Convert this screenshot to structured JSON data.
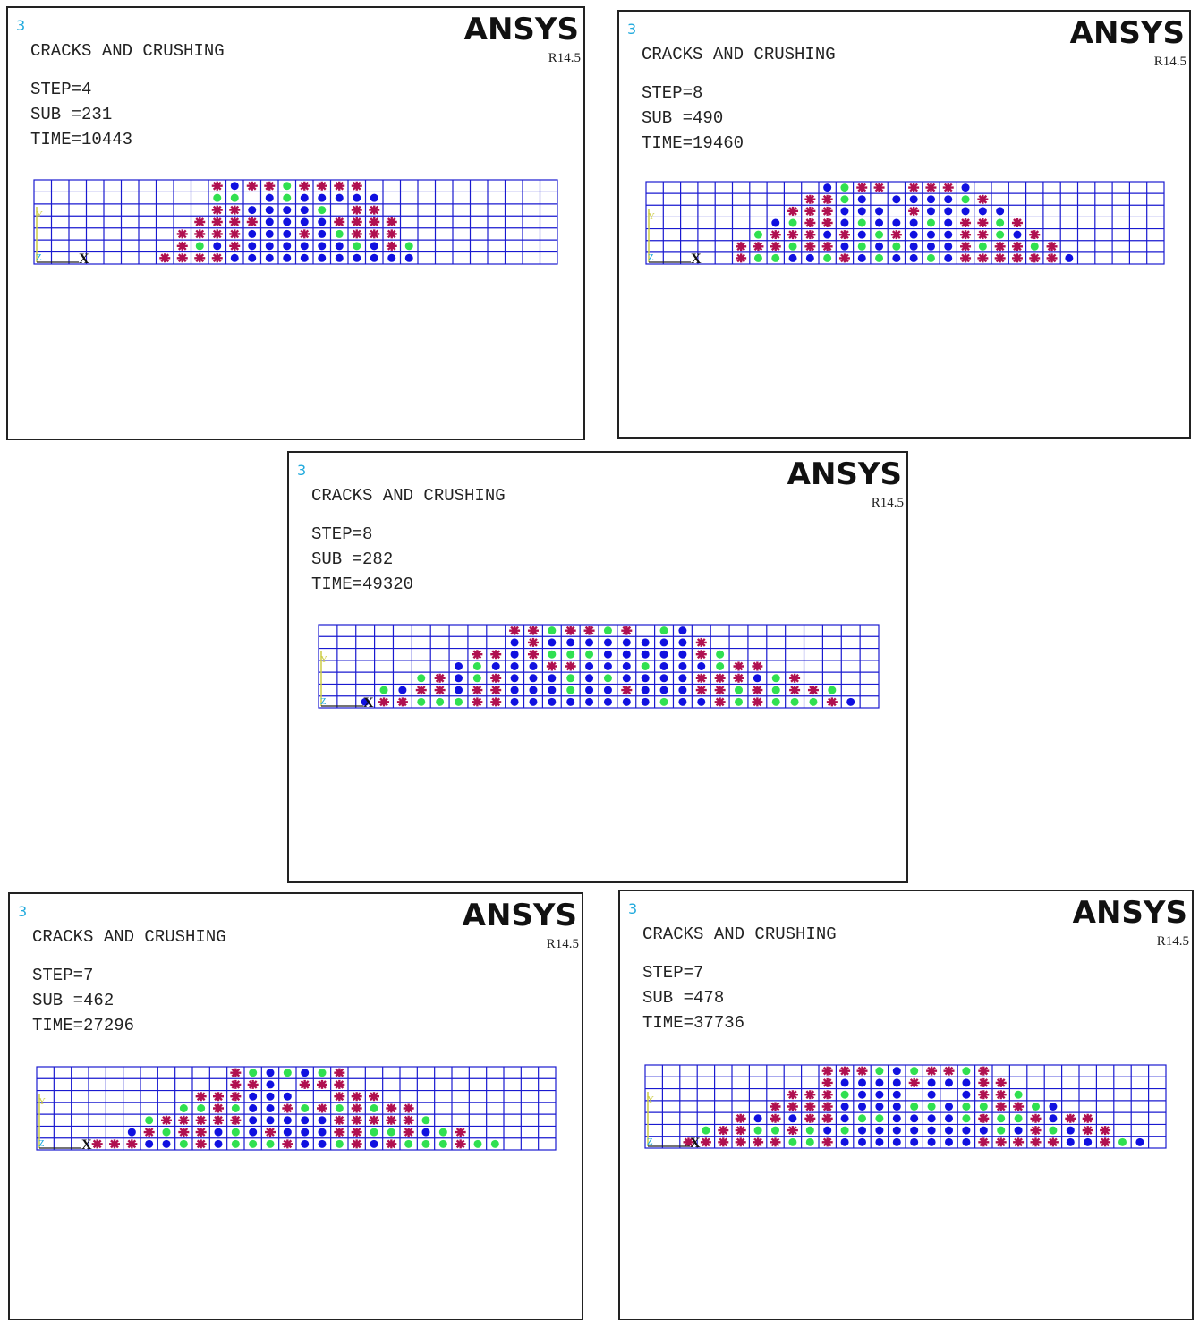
{
  "panels": [
    {
      "window": "3",
      "title": "CRACKS AND CRUSHING",
      "step": "STEP=4",
      "sub": "SUB =231",
      "time": "TIME=10443",
      "logo": "ANSYS",
      "version": "R14.5",
      "axes": {
        "y": "Y",
        "z": "Z",
        "x": "X"
      }
    },
    {
      "window": "3",
      "title": "CRACKS AND CRUSHING",
      "step": "STEP=8",
      "sub": "SUB =490",
      "time": "TIME=19460",
      "logo": "ANSYS",
      "version": "R14.5",
      "axes": {
        "y": "Y",
        "z": "Z",
        "x": "X"
      }
    },
    {
      "window": "3",
      "title": "CRACKS AND CRUSHING",
      "step": "STEP=8",
      "sub": "SUB =282",
      "time": "TIME=49320",
      "logo": "ANSYS",
      "version": "R14.5",
      "axes": {
        "y": "Y",
        "z": "Z",
        "x": "X"
      }
    },
    {
      "window": "3",
      "title": "CRACKS AND CRUSHING",
      "step": "STEP=7",
      "sub": "SUB =462",
      "time": "TIME=27296",
      "logo": "ANSYS",
      "version": "R14.5",
      "axes": {
        "y": "Y",
        "z": "Z",
        "x": "X"
      }
    },
    {
      "window": "3",
      "title": "CRACKS AND CRUSHING",
      "step": "STEP=7",
      "sub": "SUB =478",
      "time": "TIME=37736",
      "logo": "ANSYS",
      "version": "R14.5",
      "axes": {
        "y": "Y",
        "z": "Z",
        "x": "X"
      }
    }
  ]
}
